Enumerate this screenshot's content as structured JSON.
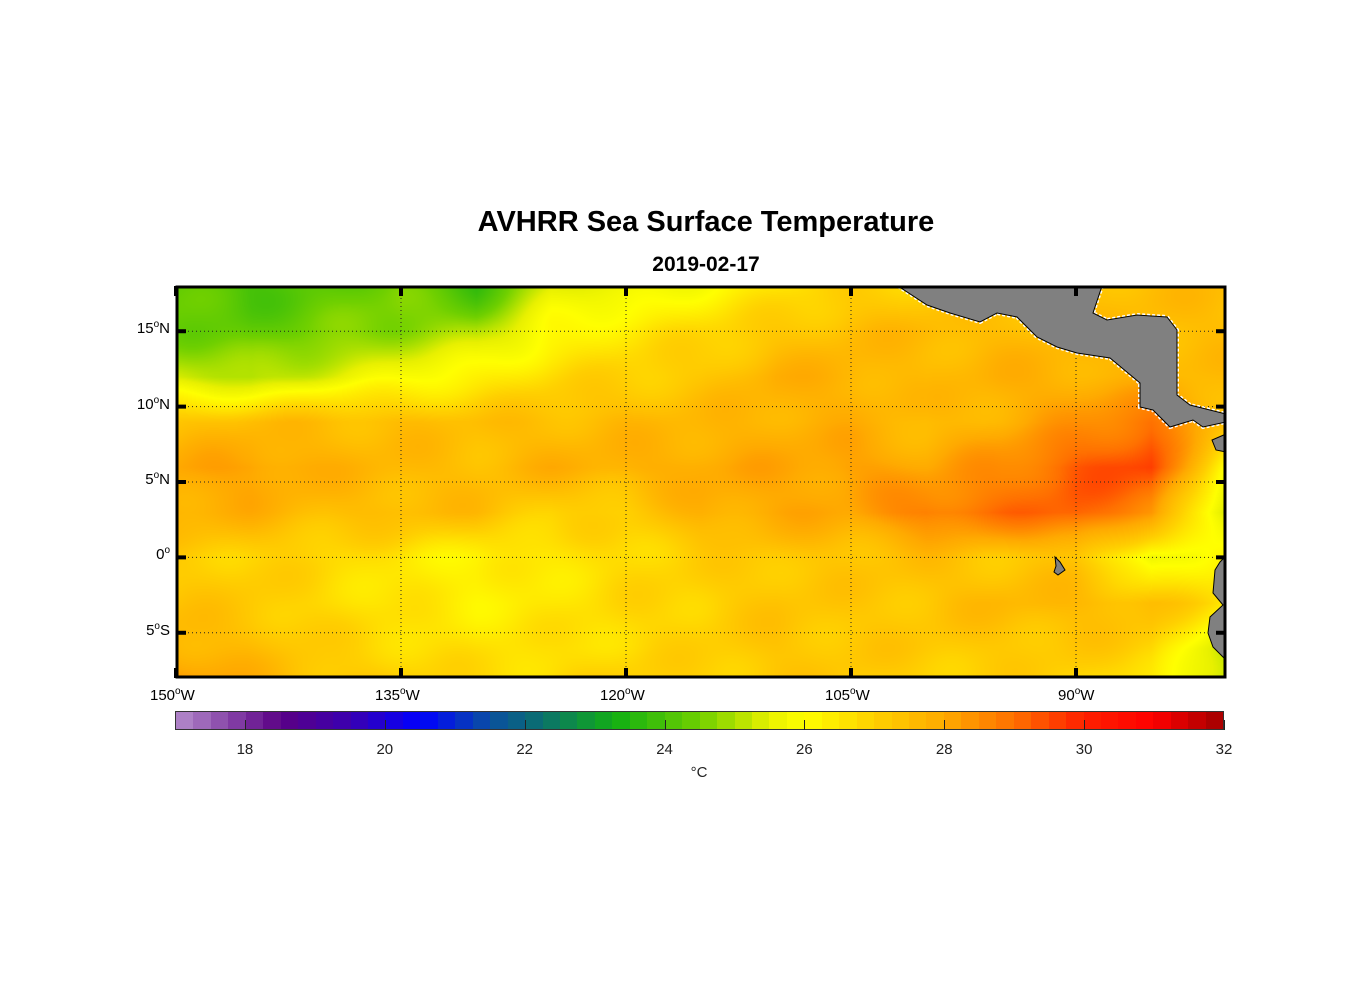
{
  "title": "AVHRR Sea Surface Temperature",
  "subtitle": "2019-02-17",
  "lat_labels": [
    {
      "deg": "15",
      "hemi": "N",
      "lat": 15
    },
    {
      "deg": "10",
      "hemi": "N",
      "lat": 10
    },
    {
      "deg": "5",
      "hemi": "N",
      "lat": 5
    },
    {
      "deg": "0",
      "hemi": "",
      "lat": 0
    },
    {
      "deg": "5",
      "hemi": "S",
      "lat": -5
    }
  ],
  "lon_labels": [
    {
      "deg": "150",
      "hemi": "W",
      "lon": -150
    },
    {
      "deg": "135",
      "hemi": "W",
      "lon": -135
    },
    {
      "deg": "120",
      "hemi": "W",
      "lon": -120
    },
    {
      "deg": "105",
      "hemi": "W",
      "lon": -105
    },
    {
      "deg": "90",
      "hemi": "W",
      "lon": -90
    }
  ],
  "colorbar": {
    "unit": "°C",
    "range": [
      17,
      32
    ],
    "ticks": [
      "18",
      "20",
      "22",
      "24",
      "26",
      "28",
      "30",
      "32"
    ],
    "stops": [
      [
        17,
        "#b48ccc"
      ],
      [
        18.5,
        "#5a0085"
      ],
      [
        19.5,
        "#3a00b0"
      ],
      [
        20.5,
        "#0000ff"
      ],
      [
        21.5,
        "#0a50a0"
      ],
      [
        22.2,
        "#0a6e70"
      ],
      [
        23.3,
        "#12b012"
      ],
      [
        24.5,
        "#70d000"
      ],
      [
        25.5,
        "#e8f000"
      ],
      [
        26,
        "#ffff00"
      ],
      [
        27,
        "#ffd000"
      ],
      [
        28,
        "#ffaa00"
      ],
      [
        29,
        "#ff7000"
      ],
      [
        30,
        "#ff2000"
      ],
      [
        31,
        "#ff0000"
      ],
      [
        32,
        "#a00000"
      ]
    ]
  },
  "chart_data": {
    "type": "heatmap",
    "variable": "sea surface temperature",
    "unit": "°C",
    "lon_range": [
      -150,
      -80
    ],
    "lat_range": [
      -8,
      18
    ],
    "grid_lons": [
      -150,
      -145,
      -140,
      -135,
      -130,
      -125,
      -120,
      -115,
      -110,
      -105,
      -100,
      -95,
      -90,
      -85,
      -80
    ],
    "grid_lats": [
      18,
      15,
      12,
      9,
      6,
      3,
      0,
      -3,
      -6,
      -8
    ],
    "values": [
      [
        24.3,
        24.0,
        24.3,
        24.5,
        23.8,
        25.5,
        25.5,
        26.0,
        26.5,
        27.0,
        27.0,
        27.2,
        27.4,
        27.5,
        27.5
      ],
      [
        24.5,
        24.3,
        24.5,
        24.8,
        25.0,
        26.0,
        26.5,
        26.8,
        27.2,
        27.5,
        27.6,
        27.5,
        27.5,
        27.5,
        27.5
      ],
      [
        25.2,
        25.0,
        25.5,
        25.8,
        26.3,
        26.8,
        27.0,
        27.2,
        27.8,
        27.8,
        27.5,
        27.8,
        27.8,
        27.6,
        27.5
      ],
      [
        27.3,
        27.5,
        27.5,
        27.5,
        27.4,
        27.5,
        27.6,
        27.6,
        27.8,
        27.8,
        27.5,
        27.8,
        28.3,
        29.0,
        27.5
      ],
      [
        28.0,
        28.2,
        27.8,
        27.6,
        27.5,
        27.8,
        27.8,
        28.0,
        28.0,
        28.2,
        28.0,
        28.5,
        29.3,
        29.6,
        26.0
      ],
      [
        27.8,
        27.8,
        27.5,
        27.5,
        27.5,
        27.0,
        27.0,
        27.8,
        28.0,
        28.0,
        28.8,
        29.0,
        29.2,
        28.5,
        25.0
      ],
      [
        27.0,
        27.0,
        26.8,
        26.5,
        26.2,
        26.5,
        26.8,
        27.0,
        27.2,
        27.3,
        27.4,
        27.2,
        27.3,
        25.5,
        26.5
      ],
      [
        27.3,
        27.2,
        26.8,
        26.5,
        26.3,
        26.5,
        26.8,
        27.0,
        27.3,
        27.2,
        27.3,
        27.6,
        27.6,
        27.5,
        26.5
      ],
      [
        27.8,
        27.5,
        27.0,
        26.8,
        26.6,
        26.6,
        26.8,
        27.0,
        27.3,
        27.2,
        27.2,
        27.2,
        27.2,
        27.0,
        25.0
      ],
      [
        28.3,
        27.8,
        27.3,
        27.0,
        26.8,
        26.8,
        27.0,
        27.0,
        27.2,
        27.2,
        27.0,
        27.0,
        27.0,
        26.5,
        25.0
      ]
    ],
    "land_color": "#808080",
    "grid": "dotted"
  }
}
